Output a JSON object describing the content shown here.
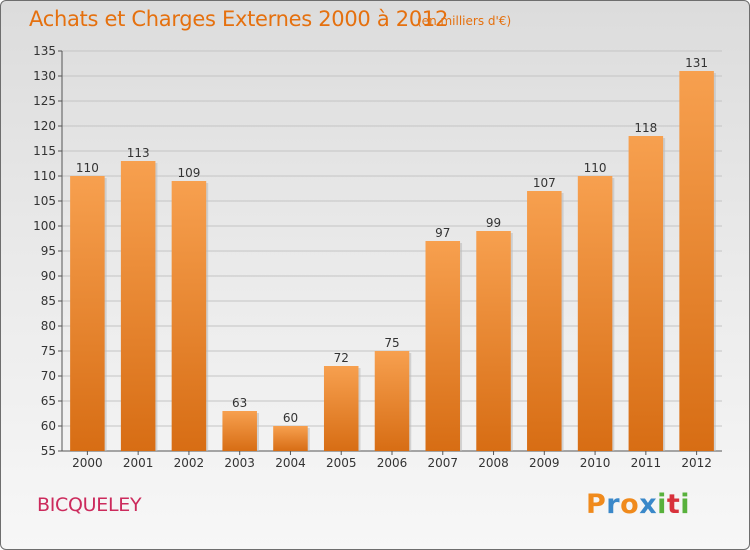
{
  "header": {
    "title": "Achats et Charges Externes 2000 à 2012",
    "unit": "(en milliers d'€)"
  },
  "footer": {
    "town": "BICQUELEY",
    "logo": {
      "letters": [
        "P",
        "r",
        "o",
        "x",
        "i",
        "t",
        "i"
      ],
      "colors": [
        "#f08a1c",
        "#3a88c9",
        "#f08a1c",
        "#3a88c9",
        "#58b13c",
        "#d8323c",
        "#58b13c"
      ]
    }
  },
  "colors": {
    "bar_light": "#f7a04f",
    "bar_dark": "#d76d14",
    "title": "#e5700e",
    "town": "#cc2a5c"
  },
  "chart_data": {
    "type": "bar",
    "title": "Achats et Charges Externes 2000 à 2012",
    "categories": [
      "2000",
      "2001",
      "2002",
      "2003",
      "2004",
      "2005",
      "2006",
      "2007",
      "2008",
      "2009",
      "2010",
      "2011",
      "2012"
    ],
    "values": [
      110,
      113,
      109,
      63,
      60,
      72,
      75,
      97,
      99,
      107,
      110,
      118,
      131
    ],
    "ylim": [
      55,
      135
    ],
    "yticks": [
      55,
      60,
      65,
      70,
      75,
      80,
      85,
      90,
      95,
      100,
      105,
      110,
      115,
      120,
      125,
      130,
      135
    ],
    "grid": true
  }
}
